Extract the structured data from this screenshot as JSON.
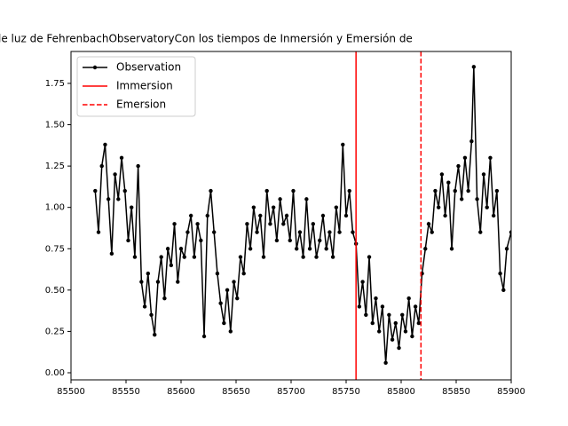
{
  "chart_data": {
    "type": "line",
    "title": "le luz de FehrenbachObservatoryCon los tiempos de Inmersión y Emersión de",
    "x": [
      85522,
      85525,
      85528,
      85531,
      85534,
      85537,
      85540,
      85543,
      85546,
      85549,
      85552,
      85555,
      85558,
      85561,
      85564,
      85567,
      85570,
      85573,
      85576,
      85579,
      85582,
      85585,
      85588,
      85591,
      85594,
      85597,
      85600,
      85603,
      85606,
      85609,
      85612,
      85615,
      85618,
      85621,
      85624,
      85627,
      85630,
      85633,
      85636,
      85639,
      85642,
      85645,
      85648,
      85651,
      85654,
      85657,
      85660,
      85663,
      85666,
      85669,
      85672,
      85675,
      85678,
      85681,
      85684,
      85687,
      85690,
      85693,
      85696,
      85699,
      85702,
      85705,
      85708,
      85711,
      85714,
      85717,
      85720,
      85723,
      85726,
      85729,
      85732,
      85735,
      85738,
      85741,
      85744,
      85747,
      85750,
      85753,
      85756,
      85759,
      85762,
      85765,
      85768,
      85771,
      85774,
      85777,
      85780,
      85783,
      85786,
      85789,
      85792,
      85795,
      85798,
      85801,
      85804,
      85807,
      85810,
      85813,
      85816,
      85819,
      85822,
      85825,
      85828,
      85831,
      85834,
      85837,
      85840,
      85843,
      85846,
      85849,
      85852,
      85855,
      85858,
      85861,
      85864,
      85866,
      85869,
      85872,
      85875,
      85878,
      85881,
      85884,
      85887,
      85890,
      85893,
      85896,
      85900
    ],
    "series": [
      {
        "name": "Observation",
        "color": "#000000",
        "values": [
          1.1,
          0.85,
          1.25,
          1.38,
          1.05,
          0.72,
          1.2,
          1.05,
          1.3,
          1.1,
          0.8,
          1.0,
          0.7,
          1.25,
          0.55,
          0.4,
          0.6,
          0.35,
          0.23,
          0.55,
          0.7,
          0.45,
          0.75,
          0.65,
          0.9,
          0.55,
          0.75,
          0.7,
          0.85,
          0.95,
          0.7,
          0.9,
          0.8,
          0.22,
          0.95,
          1.1,
          0.85,
          0.6,
          0.42,
          0.3,
          0.5,
          0.25,
          0.55,
          0.45,
          0.7,
          0.6,
          0.9,
          0.75,
          1.0,
          0.85,
          0.95,
          0.7,
          1.1,
          0.9,
          1.0,
          0.8,
          1.05,
          0.9,
          0.95,
          0.8,
          1.1,
          0.75,
          0.85,
          0.7,
          1.05,
          0.75,
          0.9,
          0.7,
          0.8,
          0.95,
          0.75,
          0.85,
          0.7,
          1.0,
          0.85,
          1.38,
          0.95,
          1.1,
          0.85,
          0.78,
          0.4,
          0.55,
          0.35,
          0.7,
          0.3,
          0.45,
          0.25,
          0.4,
          0.06,
          0.35,
          0.2,
          0.3,
          0.15,
          0.35,
          0.25,
          0.45,
          0.22,
          0.4,
          0.3,
          0.6,
          0.75,
          0.9,
          0.85,
          1.1,
          1.0,
          1.2,
          0.95,
          1.15,
          0.75,
          1.1,
          1.25,
          1.05,
          1.3,
          1.1,
          1.4,
          1.85,
          1.05,
          0.85,
          1.2,
          1.0,
          1.3,
          0.95,
          1.1,
          0.6,
          0.5,
          0.75,
          0.85
        ]
      }
    ],
    "vlines": [
      {
        "name": "Immersion",
        "x": 85759,
        "color": "#ff0000",
        "style": "solid"
      },
      {
        "name": "Emersion",
        "x": 85818,
        "color": "#ff0000",
        "style": "dashed"
      }
    ],
    "xlim": [
      85500,
      85900
    ],
    "xticks": [
      85500,
      85550,
      85600,
      85650,
      85700,
      85750,
      85800,
      85850,
      85900
    ],
    "ylim": [
      -0.043,
      1.943
    ],
    "yticks": [
      {
        "value": 0,
        "label": "0.00"
      },
      0.25,
      {
        "value": 0.5,
        "label": "0.50"
      },
      0.75,
      {
        "value": 1,
        "label": "1.00"
      },
      1.25,
      {
        "value": 1.5,
        "label": "1.50"
      },
      1.75
    ],
    "legend": "upper left"
  }
}
